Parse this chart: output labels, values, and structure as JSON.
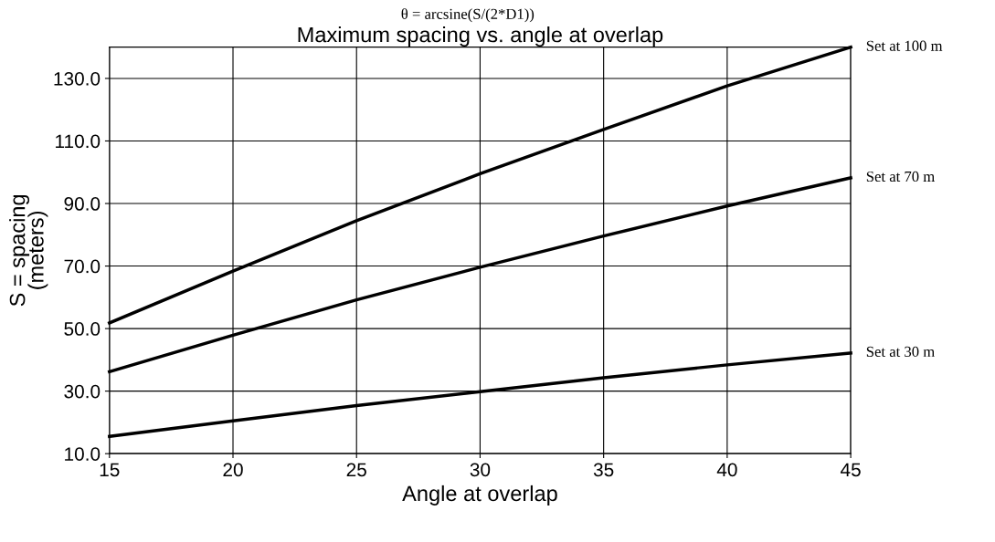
{
  "chart_data": {
    "type": "line",
    "subtitle": "θ = arcsine(S/(2*D1))",
    "title": "Maximum spacing vs. angle at overlap",
    "xlabel": "Angle at overlap",
    "ylabel": "S = spacing\n(meters)",
    "x": [
      15,
      20,
      25,
      30,
      35,
      40,
      45
    ],
    "series": [
      {
        "name": "Set at 100 m",
        "color": "#000000",
        "values": [
          51.8,
          68.4,
          84.5,
          99.5,
          113.7,
          127.6,
          140
        ]
      },
      {
        "name": "Set at 70 m",
        "color": "#000000",
        "values": [
          36.2,
          47.9,
          59.2,
          69.6,
          79.6,
          89.2,
          98.2
        ]
      },
      {
        "name": "Set at 30 m",
        "color": "#000000",
        "values": [
          15.5,
          20.5,
          25.4,
          29.8,
          34.3,
          38.4,
          42.2
        ]
      }
    ],
    "xlim": [
      15,
      45
    ],
    "xticks": [
      15,
      20,
      25,
      30,
      35,
      40,
      45
    ],
    "ylim": [
      10,
      140
    ],
    "yticks": [
      {
        "value": 10,
        "label": "10.0"
      },
      {
        "value": 30,
        "label": "30.0"
      },
      {
        "value": 50,
        "label": "50.0"
      },
      {
        "value": 70,
        "label": "70.0"
      },
      {
        "value": 90,
        "label": "90.0"
      },
      {
        "value": 110,
        "label": "110.0"
      },
      {
        "value": 130,
        "label": "130.0"
      }
    ],
    "grid": true,
    "legend": false,
    "marker": "none",
    "line_style": "solid"
  }
}
